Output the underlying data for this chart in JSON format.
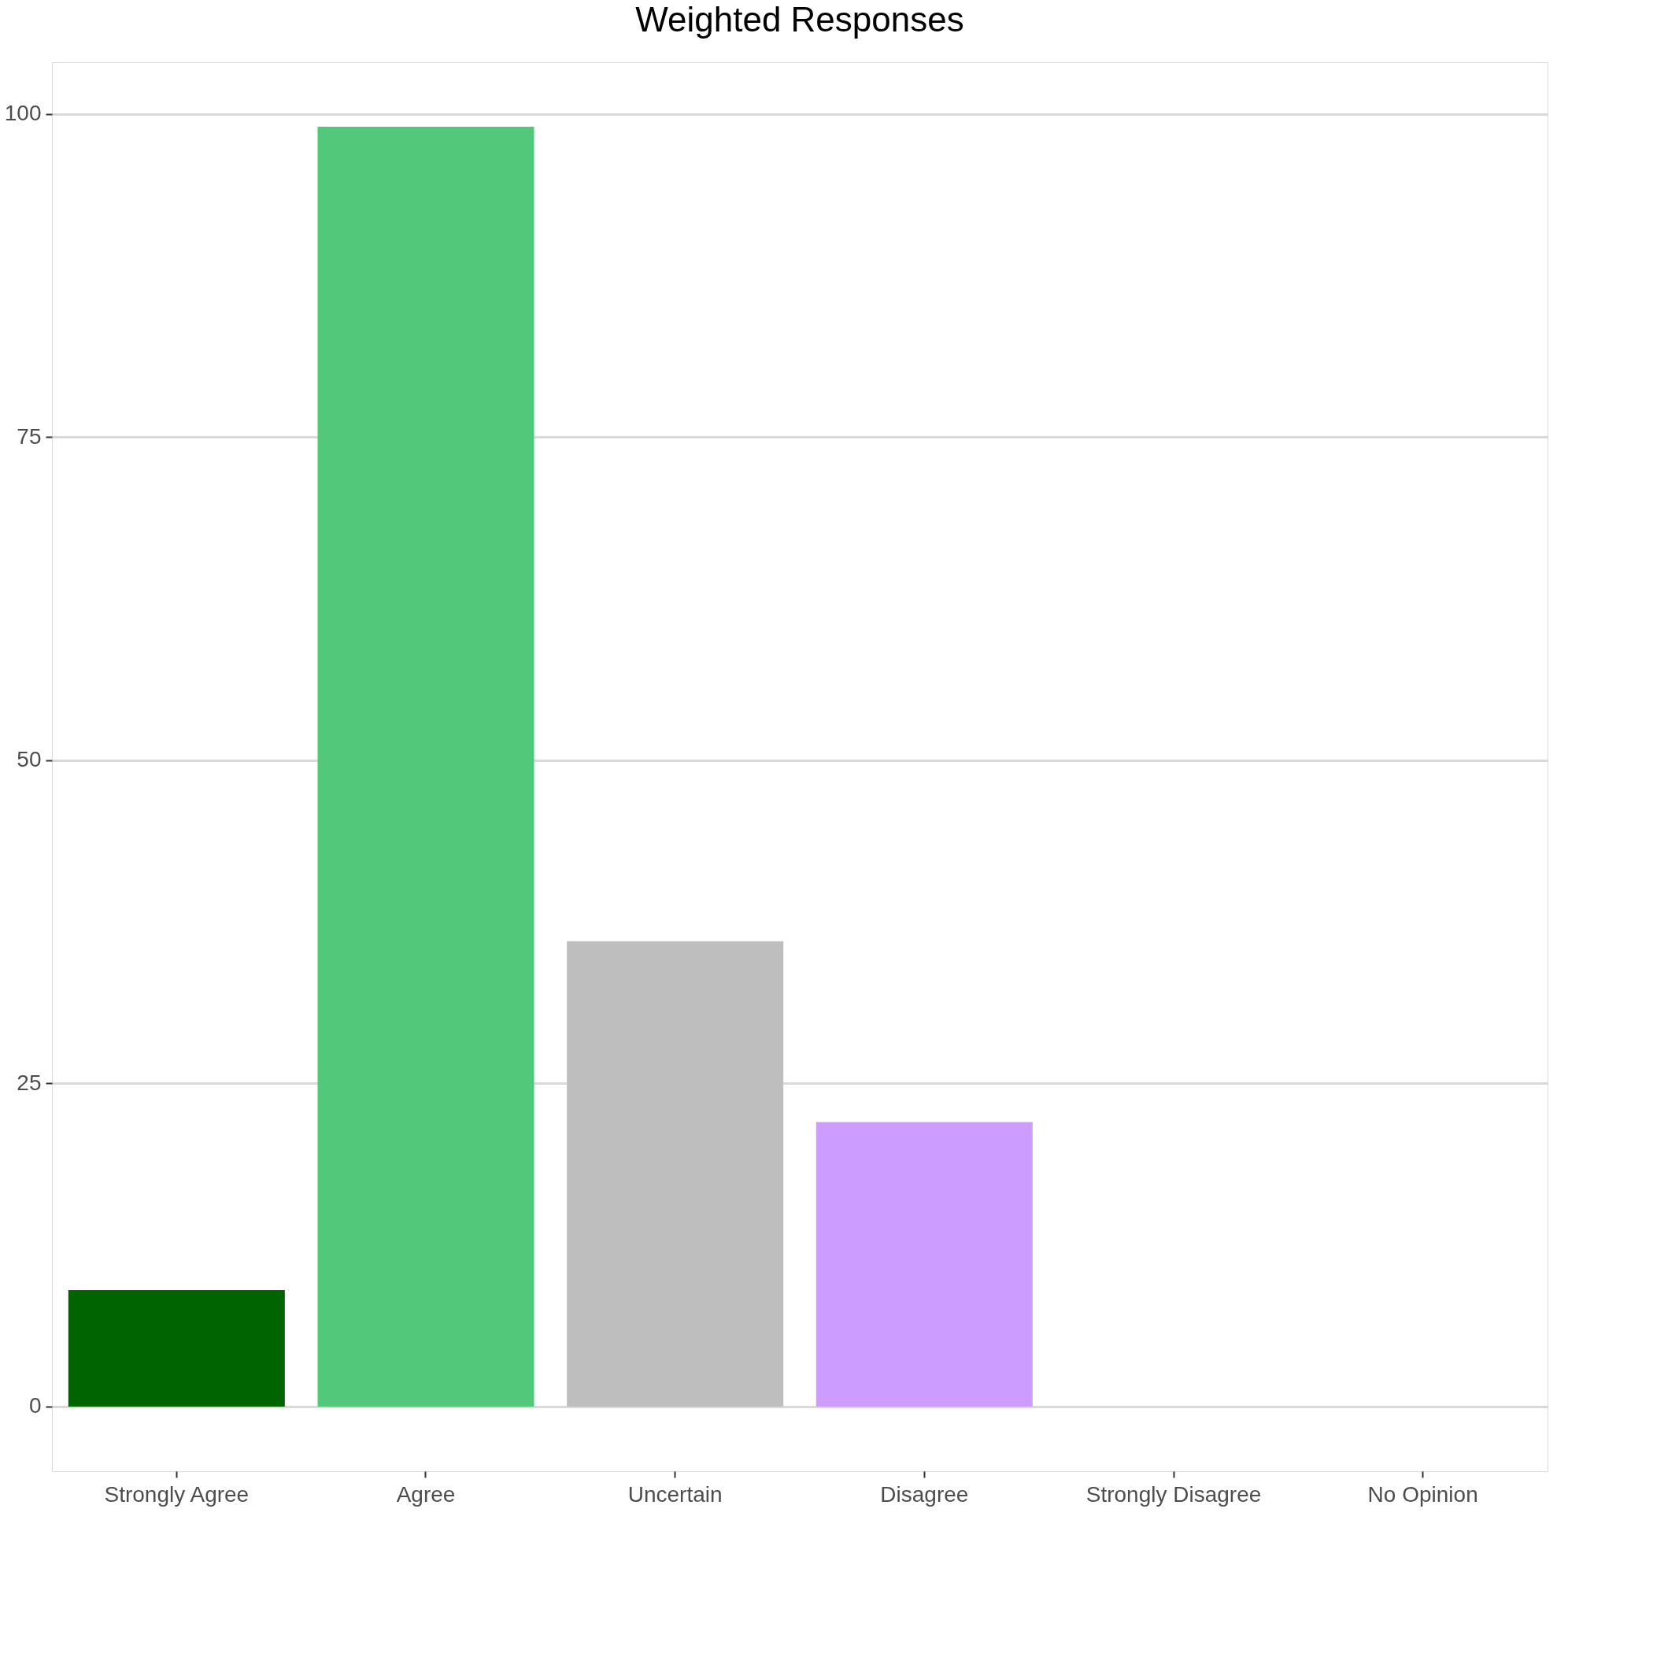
{
  "chart_data": {
    "type": "bar",
    "title": "Weighted Responses",
    "categories": [
      "Strongly Agree",
      "Agree",
      "Uncertain",
      "Disagree",
      "Strongly Disagree",
      "No Opinion"
    ],
    "values": [
      9,
      99,
      36,
      22,
      0,
      0
    ],
    "colors": [
      "#006400",
      "#52c97a",
      "#bebebe",
      "#cc9dfd",
      "#888888",
      "#888888"
    ],
    "ylim": [
      -5,
      104
    ],
    "yticks": [
      0,
      25,
      50,
      75,
      100
    ],
    "grid": "y",
    "legend": false
  }
}
